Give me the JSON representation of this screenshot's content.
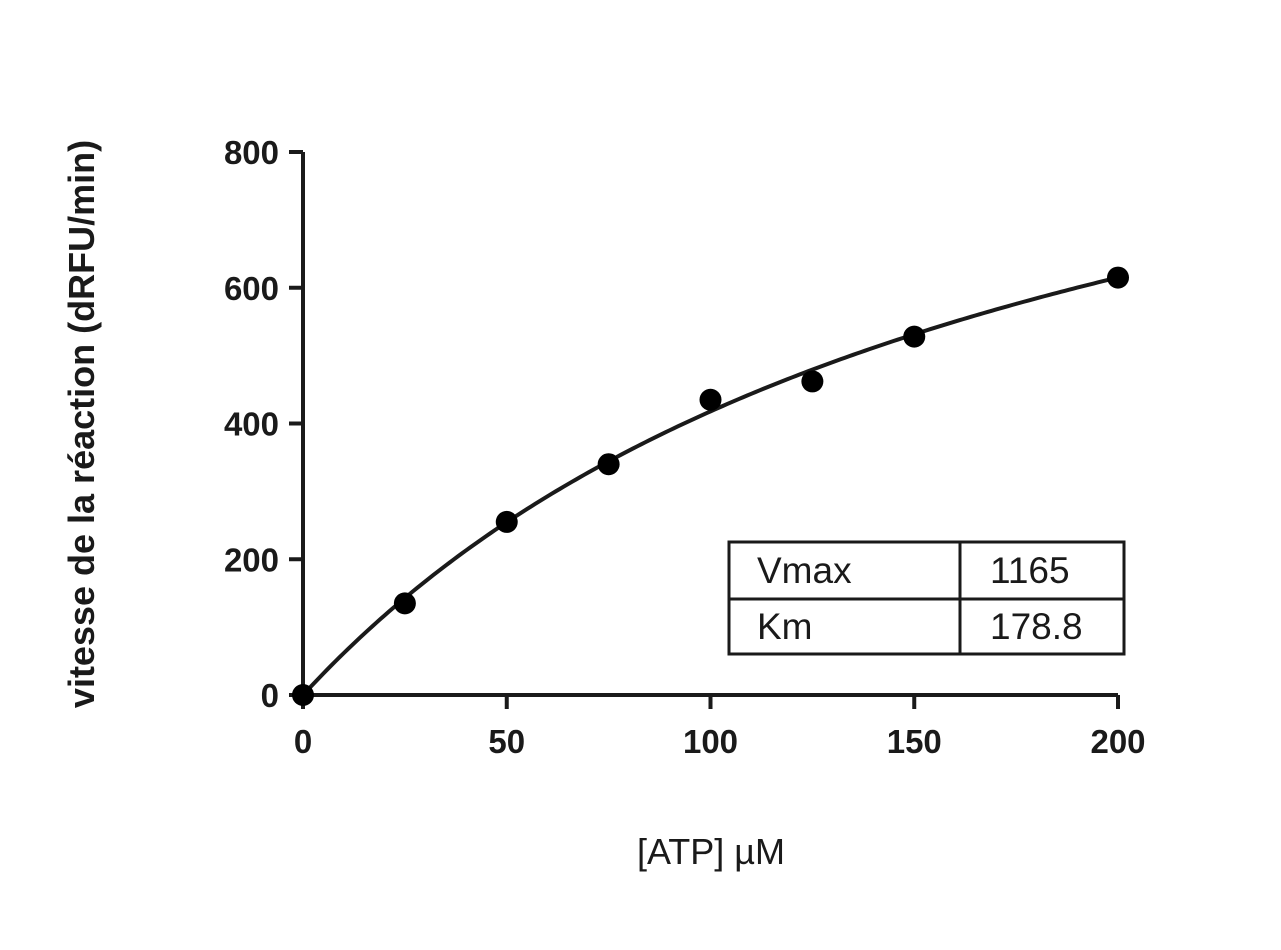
{
  "chart_data": {
    "type": "scatter",
    "xlabel": "[ATP] µM",
    "ylabel": "vitesse de la réaction (dRFU/min)",
    "xlim": [
      0,
      200
    ],
    "ylim": [
      0,
      800
    ],
    "x_ticks": [
      0,
      50,
      100,
      150,
      200
    ],
    "y_ticks": [
      0,
      200,
      400,
      600,
      800
    ],
    "grid": false,
    "series": [
      {
        "points": [
          {
            "x": 0,
            "y": 0
          },
          {
            "x": 25,
            "y": 135
          },
          {
            "x": 50,
            "y": 255
          },
          {
            "x": 75,
            "y": 340
          },
          {
            "x": 100,
            "y": 435
          },
          {
            "x": 125,
            "y": 462
          },
          {
            "x": 150,
            "y": 528
          },
          {
            "x": 200,
            "y": 615
          }
        ]
      }
    ],
    "fit": {
      "model": "Michaelis-Menten",
      "vmax": 1165,
      "km": 178.8
    },
    "table": {
      "rows": [
        {
          "label": "Vmax",
          "value": "1165"
        },
        {
          "label": "Km",
          "value": "178.8"
        }
      ]
    }
  }
}
